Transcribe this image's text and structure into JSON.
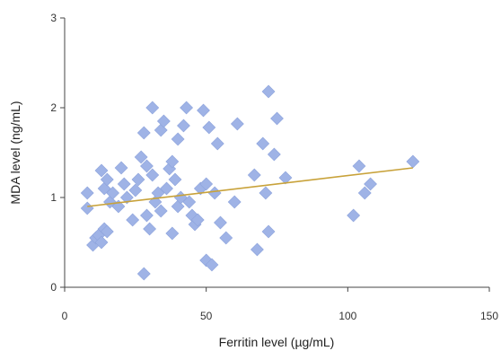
{
  "chart_data": {
    "type": "scatter",
    "title": "",
    "xlabel": "Ferritin level (µg/mL)",
    "ylabel": "MDA level (ng/mL)",
    "xlim": [
      0,
      150
    ],
    "ylim": [
      0,
      3
    ],
    "x_ticks": [
      "0",
      "50",
      "100",
      "150"
    ],
    "y_ticks": [
      "0",
      "1",
      "2",
      "3"
    ],
    "grid": false,
    "legend": "none",
    "colors": {
      "points": "#9fb3e6",
      "point_stroke": "#8ea4dc",
      "trend_line": "#c8a23a",
      "axis": "#444444"
    },
    "series": [
      {
        "points": [
          [
            8,
            1.05
          ],
          [
            8,
            0.88
          ],
          [
            10,
            0.47
          ],
          [
            11,
            0.55
          ],
          [
            12,
            0.58
          ],
          [
            13,
            0.5
          ],
          [
            14,
            0.65
          ],
          [
            13,
            1.3
          ],
          [
            14,
            1.1
          ],
          [
            15,
            1.2
          ],
          [
            15,
            0.62
          ],
          [
            16,
            0.95
          ],
          [
            17,
            1.05
          ],
          [
            19,
            0.9
          ],
          [
            20,
            1.33
          ],
          [
            21,
            1.15
          ],
          [
            22,
            1.0
          ],
          [
            24,
            0.75
          ],
          [
            25,
            1.08
          ],
          [
            26,
            1.2
          ],
          [
            27,
            1.45
          ],
          [
            28,
            0.15
          ],
          [
            28,
            1.72
          ],
          [
            29,
            1.35
          ],
          [
            29,
            0.8
          ],
          [
            30,
            0.65
          ],
          [
            31,
            2.0
          ],
          [
            31,
            1.25
          ],
          [
            32,
            0.95
          ],
          [
            33,
            1.05
          ],
          [
            34,
            1.75
          ],
          [
            34,
            0.85
          ],
          [
            35,
            1.85
          ],
          [
            36,
            1.1
          ],
          [
            37,
            1.32
          ],
          [
            38,
            0.6
          ],
          [
            38,
            1.4
          ],
          [
            39,
            1.2
          ],
          [
            40,
            0.9
          ],
          [
            40,
            1.65
          ],
          [
            41,
            1.0
          ],
          [
            42,
            1.8
          ],
          [
            43,
            2.0
          ],
          [
            44,
            0.95
          ],
          [
            45,
            0.8
          ],
          [
            46,
            0.7
          ],
          [
            47,
            0.75
          ],
          [
            48,
            1.1
          ],
          [
            49,
            1.97
          ],
          [
            50,
            1.15
          ],
          [
            50,
            0.3
          ],
          [
            51,
            1.78
          ],
          [
            52,
            0.25
          ],
          [
            53,
            1.05
          ],
          [
            54,
            1.6
          ],
          [
            55,
            0.72
          ],
          [
            57,
            0.55
          ],
          [
            60,
            0.95
          ],
          [
            61,
            1.82
          ],
          [
            67,
            1.25
          ],
          [
            68,
            0.42
          ],
          [
            70,
            1.6
          ],
          [
            71,
            1.05
          ],
          [
            72,
            2.18
          ],
          [
            72,
            0.62
          ],
          [
            74,
            1.48
          ],
          [
            75,
            1.88
          ],
          [
            78,
            1.22
          ],
          [
            102,
            0.8
          ],
          [
            104,
            1.35
          ],
          [
            106,
            1.05
          ],
          [
            108,
            1.15
          ],
          [
            123,
            1.4
          ]
        ]
      }
    ],
    "trend_line": {
      "x1": 8,
      "y1": 0.9,
      "x2": 123,
      "y2": 1.33
    }
  }
}
